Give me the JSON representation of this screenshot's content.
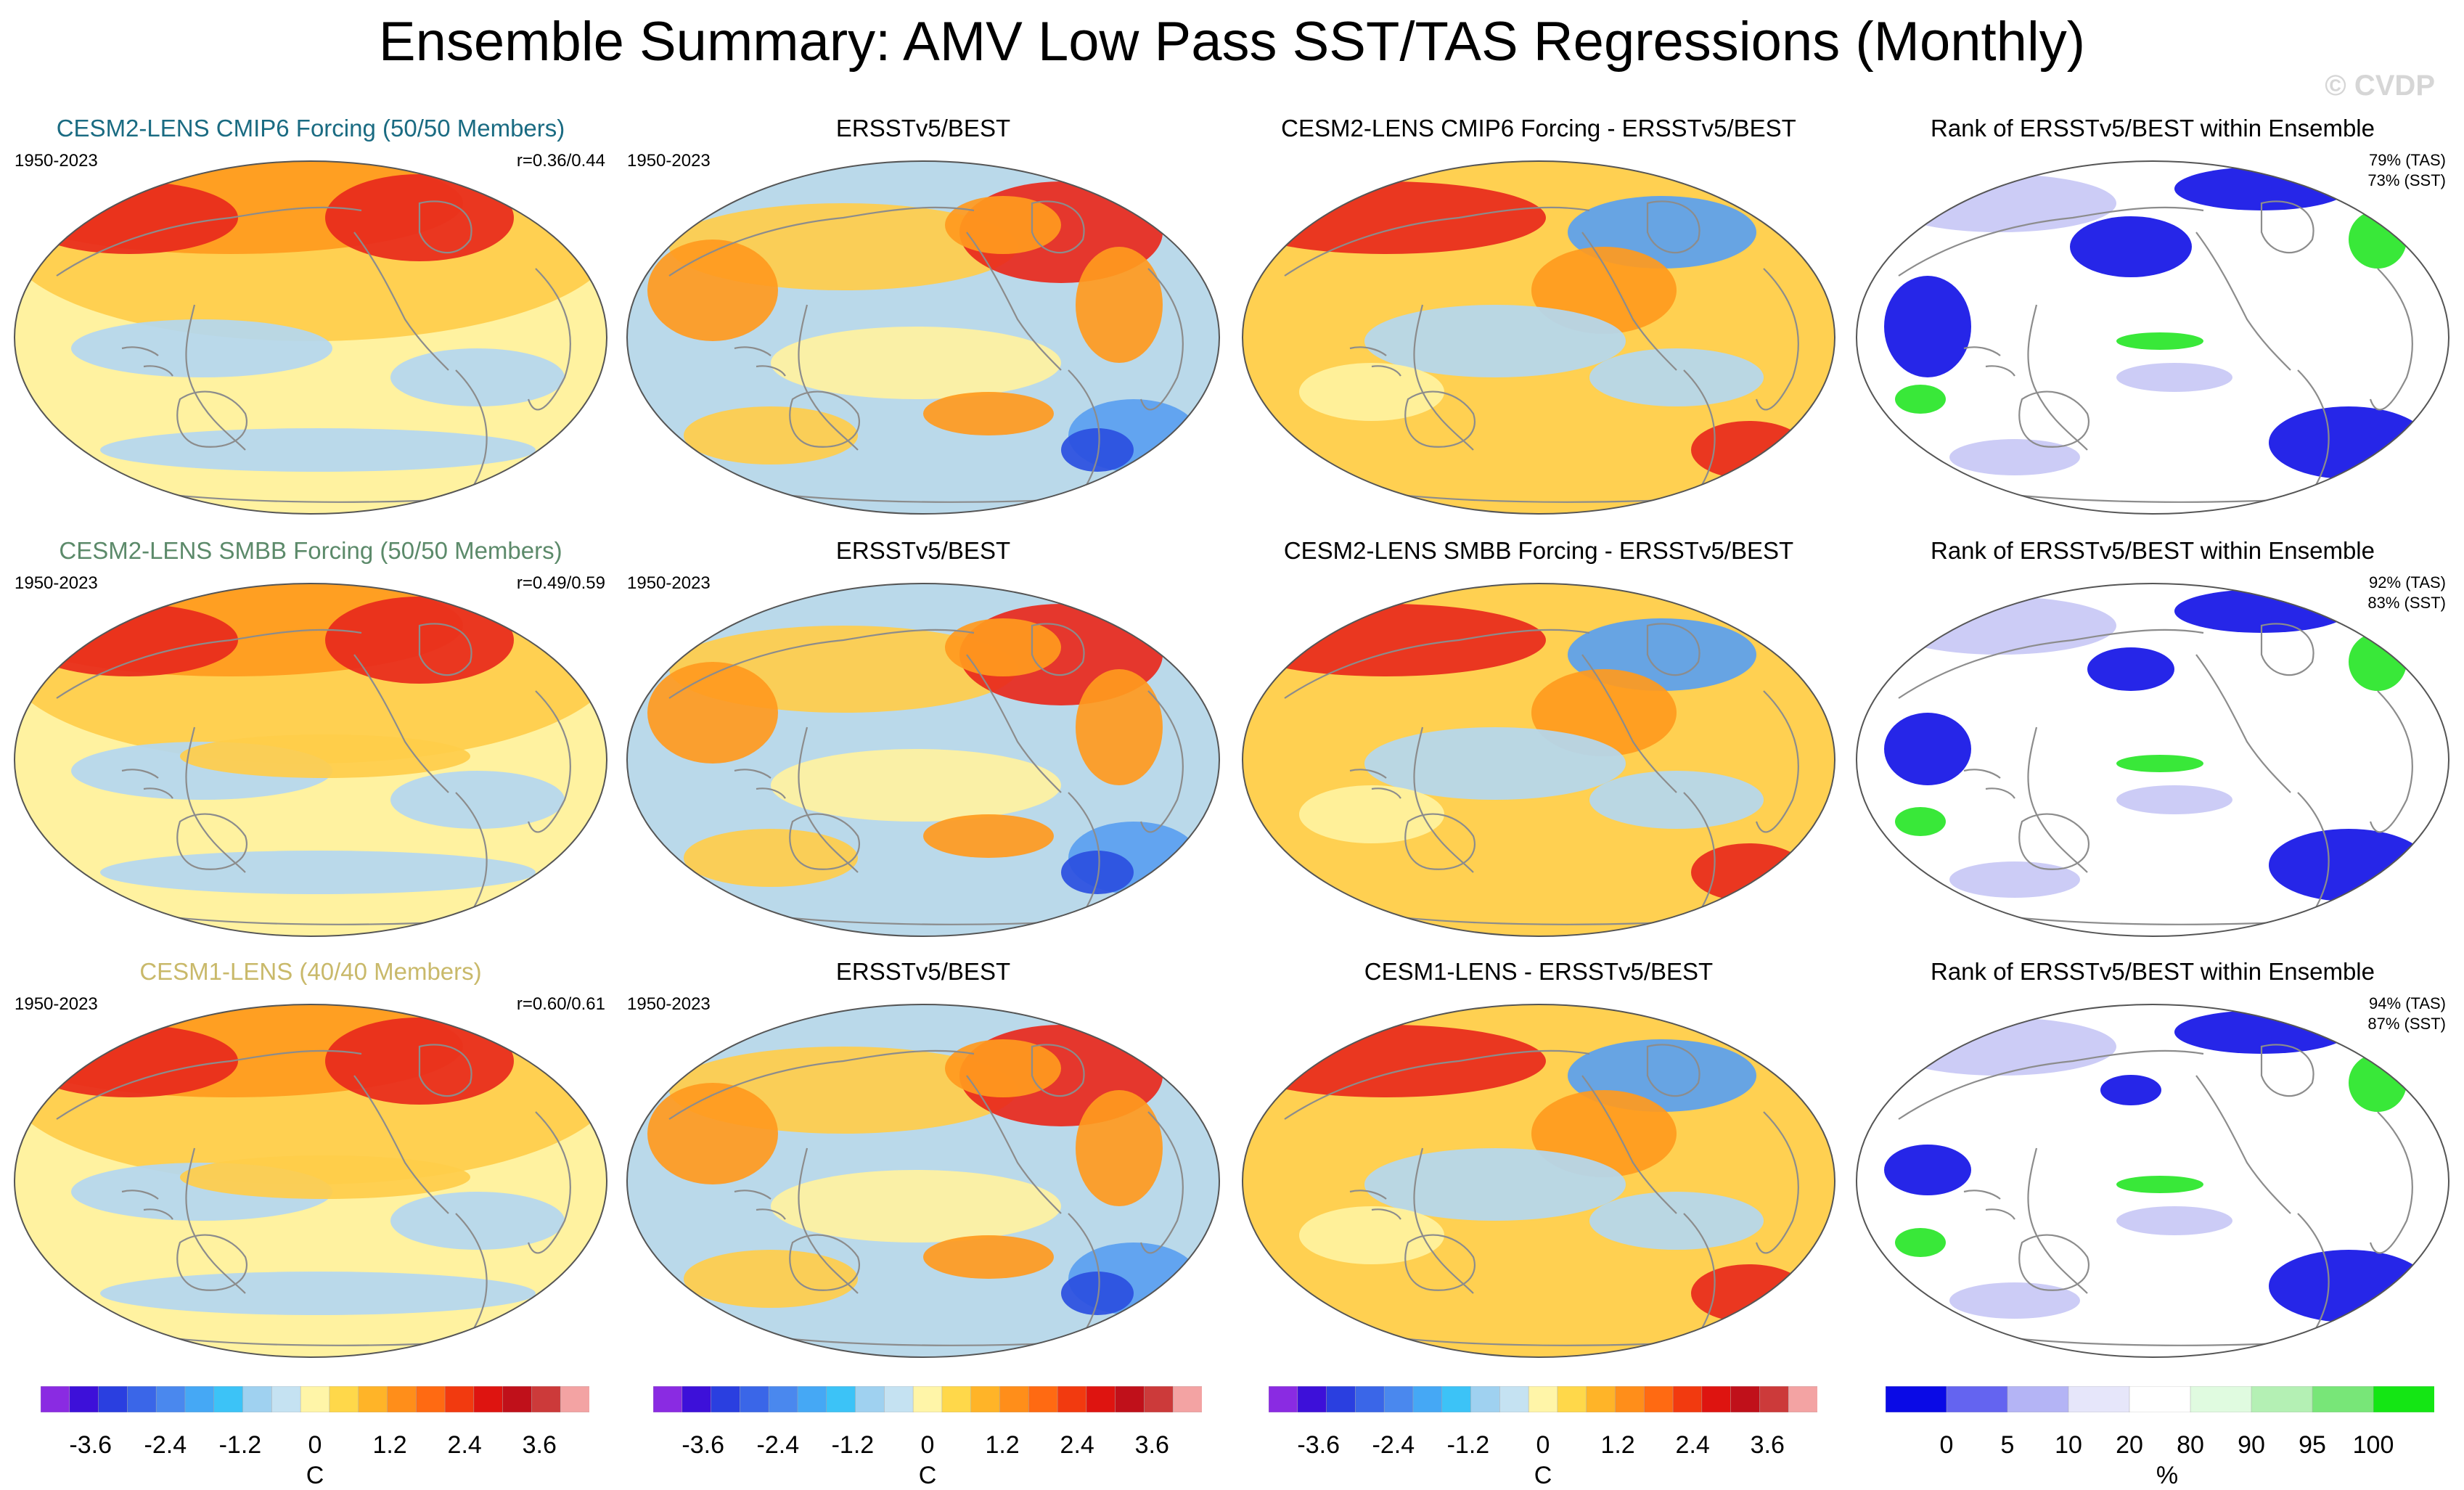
{
  "title": "Ensemble Summary: AMV Low Pass SST/TAS Regressions (Monthly)",
  "watermark": "© CVDP",
  "rows": [
    {
      "ens_title": "CESM2-LENS CMIP6 Forcing (50/50 Members)",
      "ens_title_color": "#1a6b82",
      "period": "1950-2023",
      "corr": "r=0.36/0.44",
      "obs_title": "ERSSTv5/BEST",
      "obs_period": "1950-2023",
      "diff_title": "CESM2-LENS CMIP6 Forcing - ERSSTv5/BEST",
      "rank_title": "Rank of ERSSTv5/BEST within Ensemble",
      "rank_tas": "79% (TAS)",
      "rank_sst": "73% (SST)"
    },
    {
      "ens_title": "CESM2-LENS SMBB Forcing (50/50 Members)",
      "ens_title_color": "#5c8a6a",
      "period": "1950-2023",
      "corr": "r=0.49/0.59",
      "obs_title": "ERSSTv5/BEST",
      "obs_period": "1950-2023",
      "diff_title": "CESM2-LENS SMBB Forcing - ERSSTv5/BEST",
      "rank_title": "Rank of ERSSTv5/BEST within Ensemble",
      "rank_tas": "92% (TAS)",
      "rank_sst": "83% (SST)"
    },
    {
      "ens_title": "CESM1-LENS (40/40 Members)",
      "ens_title_color": "#c9b96a",
      "period": "1950-2023",
      "corr": "r=0.60/0.61",
      "obs_title": "ERSSTv5/BEST",
      "obs_period": "1950-2023",
      "diff_title": "CESM1-LENS - ERSSTv5/BEST",
      "rank_title": "Rank of ERSSTv5/BEST within Ensemble",
      "rank_tas": "94% (TAS)",
      "rank_sst": "87% (SST)"
    }
  ],
  "colorbar_temp": {
    "ticks": [
      "-3.6",
      "-2.4",
      "-1.2",
      "0",
      "1.2",
      "2.4",
      "3.6"
    ],
    "tick_values": [
      -3.6,
      -2.4,
      -1.2,
      0,
      1.2,
      2.4,
      3.6
    ],
    "range": [
      -4.4,
      4.4
    ],
    "unit": "C",
    "colors": [
      "#8a2be2",
      "#3d10d9",
      "#2a3fe0",
      "#3a66e8",
      "#4a88ee",
      "#45a8f5",
      "#3cc3f7",
      "#9fd1f0",
      "#c5e2f2",
      "#fff5a8",
      "#ffd84a",
      "#ffb428",
      "#ff8e1a",
      "#ff6a12",
      "#f23a0f",
      "#de1410",
      "#c0101a",
      "#cc3a3a",
      "#f3a3a3"
    ]
  },
  "colorbar_rank": {
    "ticks": [
      "0",
      "5",
      "10",
      "20",
      "80",
      "90",
      "95",
      "100"
    ],
    "unit": "%",
    "colors": [
      "#0a0ae6",
      "#6464f0",
      "#b4b4f5",
      "#e6e6fa",
      "#ffffff",
      "#e0fbe0",
      "#b4f0b4",
      "#78e678",
      "#14e614"
    ]
  },
  "map_colors": {
    "red": "#e8291c",
    "orange": "#ff9a1e",
    "light_orange": "#ffcd4a",
    "yellow": "#fff2a0",
    "light_blue": "#b4d7f0",
    "blue": "#5a9ff0",
    "dark_blue": "#2a4fe0",
    "rank_blue": "#1414e6",
    "rank_light_blue": "#c8c8f5",
    "rank_green": "#28e628",
    "coast": "#8c8c8c"
  }
}
